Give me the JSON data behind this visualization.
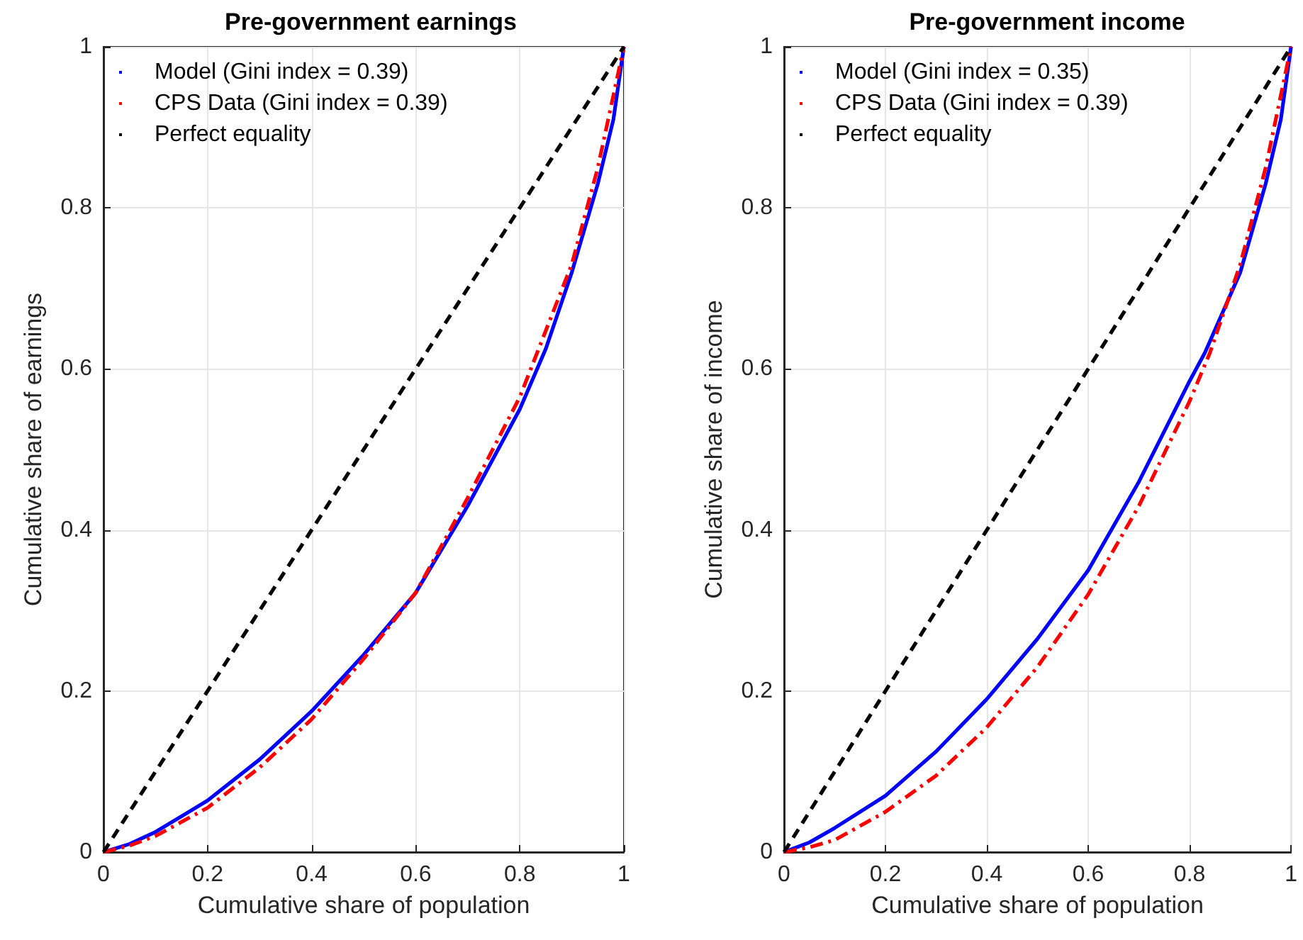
{
  "chart_data": [
    {
      "type": "line",
      "title": "Pre-government earnings",
      "xlabel": "Cumulative share of population",
      "ylabel": "Cumulative share of earnings",
      "xlim": [
        0,
        1
      ],
      "ylim": [
        0,
        1
      ],
      "xticks": [
        0,
        0.2,
        0.4,
        0.6,
        0.8,
        1
      ],
      "yticks": [
        0,
        0.2,
        0.4,
        0.6,
        0.8,
        1
      ],
      "grid": true,
      "legend": "top left",
      "series": [
        {
          "name": "Model (Gini index = 0.39)",
          "color": "#0000ff",
          "line_style": "solid",
          "x": [
            0,
            0.05,
            0.1,
            0.2,
            0.3,
            0.4,
            0.5,
            0.6,
            0.7,
            0.8,
            0.85,
            0.9,
            0.95,
            0.98,
            1
          ],
          "values": [
            0,
            0.01,
            0.025,
            0.064,
            0.115,
            0.175,
            0.245,
            0.322,
            0.43,
            0.55,
            0.625,
            0.72,
            0.83,
            0.91,
            1
          ]
        },
        {
          "name": "CPS Data (Gini index = 0.39)",
          "color": "#ff0000",
          "line_style": "dashdot",
          "x": [
            0,
            0.05,
            0.1,
            0.2,
            0.3,
            0.4,
            0.5,
            0.6,
            0.7,
            0.8,
            0.9,
            0.95,
            1
          ],
          "values": [
            0,
            0.008,
            0.02,
            0.055,
            0.105,
            0.165,
            0.24,
            0.322,
            0.44,
            0.565,
            0.73,
            0.85,
            1
          ]
        },
        {
          "name": "Perfect equality",
          "color": "#000000",
          "line_style": "dashed",
          "x": [
            0,
            1
          ],
          "values": [
            0,
            1
          ]
        }
      ]
    },
    {
      "type": "line",
      "title": "Pre-government income",
      "xlabel": "Cumulative share of population",
      "ylabel": "Cumulative share of income",
      "xlim": [
        0,
        1
      ],
      "ylim": [
        0,
        1
      ],
      "xticks": [
        0,
        0.2,
        0.4,
        0.6,
        0.8,
        1
      ],
      "yticks": [
        0,
        0.2,
        0.4,
        0.6,
        0.8,
        1
      ],
      "grid": true,
      "legend": "top left",
      "series": [
        {
          "name": "Model (Gini index = 0.35)",
          "color": "#0000ff",
          "line_style": "solid",
          "x": [
            0,
            0.05,
            0.1,
            0.2,
            0.3,
            0.4,
            0.5,
            0.6,
            0.7,
            0.8,
            0.83,
            0.9,
            0.95,
            0.98,
            1
          ],
          "values": [
            0,
            0.012,
            0.03,
            0.07,
            0.125,
            0.19,
            0.265,
            0.35,
            0.46,
            0.585,
            0.62,
            0.72,
            0.83,
            0.91,
            1
          ]
        },
        {
          "name": "CPS Data (Gini index = 0.39)",
          "color": "#ff0000",
          "line_style": "dashdot",
          "x": [
            0,
            0.05,
            0.1,
            0.2,
            0.3,
            0.4,
            0.5,
            0.6,
            0.7,
            0.8,
            0.84,
            0.9,
            0.95,
            1
          ],
          "values": [
            0,
            0.006,
            0.015,
            0.05,
            0.095,
            0.155,
            0.23,
            0.32,
            0.43,
            0.56,
            0.62,
            0.73,
            0.85,
            1
          ]
        },
        {
          "name": "Perfect equality",
          "color": "#000000",
          "line_style": "dashed",
          "x": [
            0,
            1
          ],
          "values": [
            0,
            1
          ]
        }
      ]
    }
  ]
}
